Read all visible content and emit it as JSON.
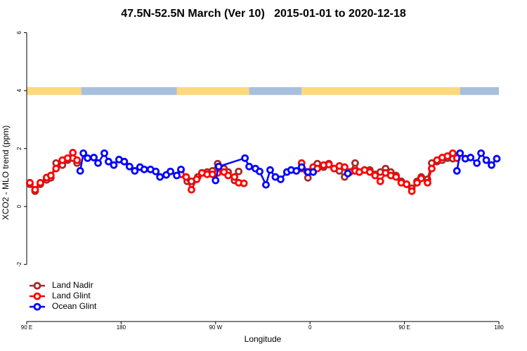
{
  "chart_data": {
    "type": "line",
    "title": "47.5N-52.5N March (Ver 10)   2015-01-01 to 2020-12-18",
    "xlabel": "Longitude",
    "ylabel": "XCO2 - MLO trend (ppm)",
    "xlim": [
      90,
      540
    ],
    "ylim": [
      -3.97,
      6.28
    ],
    "xticks": [
      {
        "value": 90,
        "label": "90 E"
      },
      {
        "value": 180,
        "label": "180"
      },
      {
        "value": 270,
        "label": "90 W"
      },
      {
        "value": 360,
        "label": "0"
      },
      {
        "value": 450,
        "label": "90 E"
      },
      {
        "value": 540,
        "label": "180"
      }
    ],
    "yticks": [
      -2,
      0,
      2,
      4,
      6
    ],
    "legend": "bottom-left",
    "strip": {
      "ylim": [
        3.85,
        4.12
      ],
      "edges": [
        90,
        142,
        233,
        302,
        352,
        503,
        540
      ],
      "colors": [
        "#fdd87e",
        "#a9bfde",
        "#fdd87e",
        "#a9bfde",
        "#fdd87e",
        "#a9bfde"
      ]
    },
    "series": [
      {
        "name": "Land Nadir",
        "color": "#a52a2a",
        "x": [
          93,
          98,
          103,
          109,
          113,
          118,
          124,
          129,
          134,
          138,
          190,
          237,
          243,
          247,
          253,
          257,
          262,
          267,
          272,
          278,
          282,
          288,
          292,
          325,
          352,
          358,
          363,
          367,
          373,
          378,
          383,
          388,
          393,
          398,
          403,
          407,
          412,
          417,
          422,
          427,
          432,
          437,
          442,
          447,
          452,
          457,
          462,
          466,
          472,
          476,
          481,
          486,
          491,
          496,
          500
        ],
        "values": [
          0.77,
          0.53,
          0.77,
          0.92,
          0.99,
          1.5,
          1.43,
          1.6,
          1.67,
          1.5,
          null,
          1.26,
          0.87,
          0.87,
          1.02,
          1.16,
          1.19,
          1.23,
          1.48,
          1.31,
          1.19,
          0.9,
          1.21,
          null,
          1.31,
          0.99,
          1.31,
          1.48,
          1.36,
          1.48,
          1.31,
          1.23,
          1.02,
          1.19,
          1.5,
          1.19,
          1.26,
          1.26,
          1.11,
          1.19,
          1.31,
          1.19,
          1.07,
          0.87,
          0.77,
          0.63,
          0.87,
          1.02,
          0.94,
          1.5,
          1.55,
          1.6,
          1.67,
          1.65,
          1.74
        ]
      },
      {
        "name": "Land Glint",
        "color": "#ff0000",
        "x": [
          93,
          98,
          103,
          109,
          113,
          118,
          124,
          129,
          134,
          138,
          190,
          237,
          242,
          247,
          252,
          257,
          262,
          267,
          272,
          278,
          282,
          288,
          292,
          297,
          325,
          352,
          358,
          363,
          367,
          373,
          378,
          383,
          388,
          393,
          398,
          403,
          407,
          412,
          417,
          422,
          427,
          432,
          437,
          442,
          447,
          452,
          457,
          462,
          466,
          472,
          476,
          481,
          486,
          491,
          496,
          500
        ],
        "values": [
          0.82,
          0.58,
          0.82,
          1.0,
          1.07,
          1.31,
          1.6,
          1.67,
          1.86,
          1.6,
          null,
          1.11,
          1.02,
          0.58,
          0.94,
          1.16,
          1.11,
          1.11,
          1.16,
          1.19,
          1.07,
          1.02,
          0.82,
          0.8,
          null,
          1.5,
          1.19,
          1.36,
          1.31,
          1.43,
          1.45,
          1.31,
          1.4,
          1.36,
          1.19,
          1.23,
          1.19,
          1.26,
          1.19,
          1.07,
          0.87,
          1.16,
          1.07,
          1.02,
          0.82,
          0.77,
          0.53,
          0.82,
          0.97,
          0.82,
          1.31,
          1.6,
          1.69,
          1.74,
          1.84,
          1.67
        ]
      },
      {
        "name": "Ocean Glint",
        "color": "#0000ff",
        "x": [
          141,
          144,
          148,
          154,
          158,
          164,
          168,
          173,
          178,
          183,
          188,
          193,
          198,
          202,
          208,
          213,
          217,
          223,
          227,
          233,
          237,
          250,
          270,
          273,
          298,
          302,
          308,
          312,
          318,
          322,
          327,
          332,
          338,
          342,
          347,
          352,
          358,
          363,
          370,
          396,
          450,
          500,
          503,
          508,
          513,
          519,
          523,
          528,
          533,
          538
        ],
        "values": [
          1.23,
          1.84,
          1.67,
          1.69,
          1.5,
          1.84,
          1.55,
          1.43,
          1.62,
          1.55,
          1.38,
          1.23,
          1.36,
          1.28,
          1.28,
          1.21,
          1.02,
          1.09,
          1.21,
          1.07,
          1.28,
          null,
          0.9,
          1.38,
          1.67,
          1.38,
          1.31,
          1.21,
          0.75,
          1.26,
          1.02,
          0.94,
          1.19,
          1.26,
          1.23,
          1.36,
          1.19,
          1.19,
          null,
          1.14,
          null,
          1.23,
          1.84,
          1.65,
          1.69,
          1.5,
          1.84,
          1.6,
          1.43,
          1.65
        ]
      }
    ]
  }
}
